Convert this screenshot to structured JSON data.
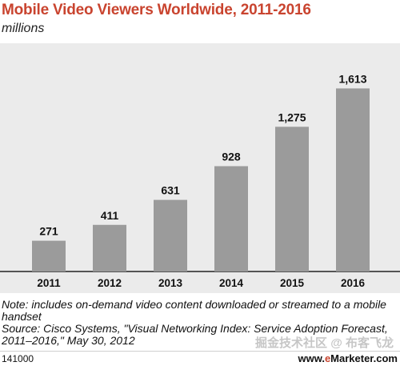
{
  "chart_data": {
    "type": "bar",
    "title": "Mobile Video Viewers Worldwide, 2011-2016",
    "subtitle": "millions",
    "categories": [
      "2011",
      "2012",
      "2013",
      "2014",
      "2015",
      "2016"
    ],
    "values": [
      271,
      411,
      631,
      928,
      1275,
      1613
    ],
    "value_labels": [
      "271",
      "411",
      "631",
      "928",
      "1,275",
      "1,613"
    ],
    "ylim": [
      0,
      1750
    ],
    "grid": false,
    "legend": "none"
  },
  "colors": {
    "title": "#c9442f",
    "plot_background": "#ebebeb",
    "bars": "#9b9b9b",
    "baseline": "#222222"
  },
  "notes": {
    "note": "Note: includes on-demand video content downloaded or streamed to a mobile handset",
    "source": "Source: Cisco Systems, \"Visual Networking Index: Service Adoption Forecast, 2011–2016,\" May 30, 2012"
  },
  "footer": {
    "id": "141000",
    "brand_prefix": "www.",
    "brand_e": "e",
    "brand_suffix": "Marketer.com"
  },
  "watermark": "掘金技术社区 @ 布客飞龙"
}
